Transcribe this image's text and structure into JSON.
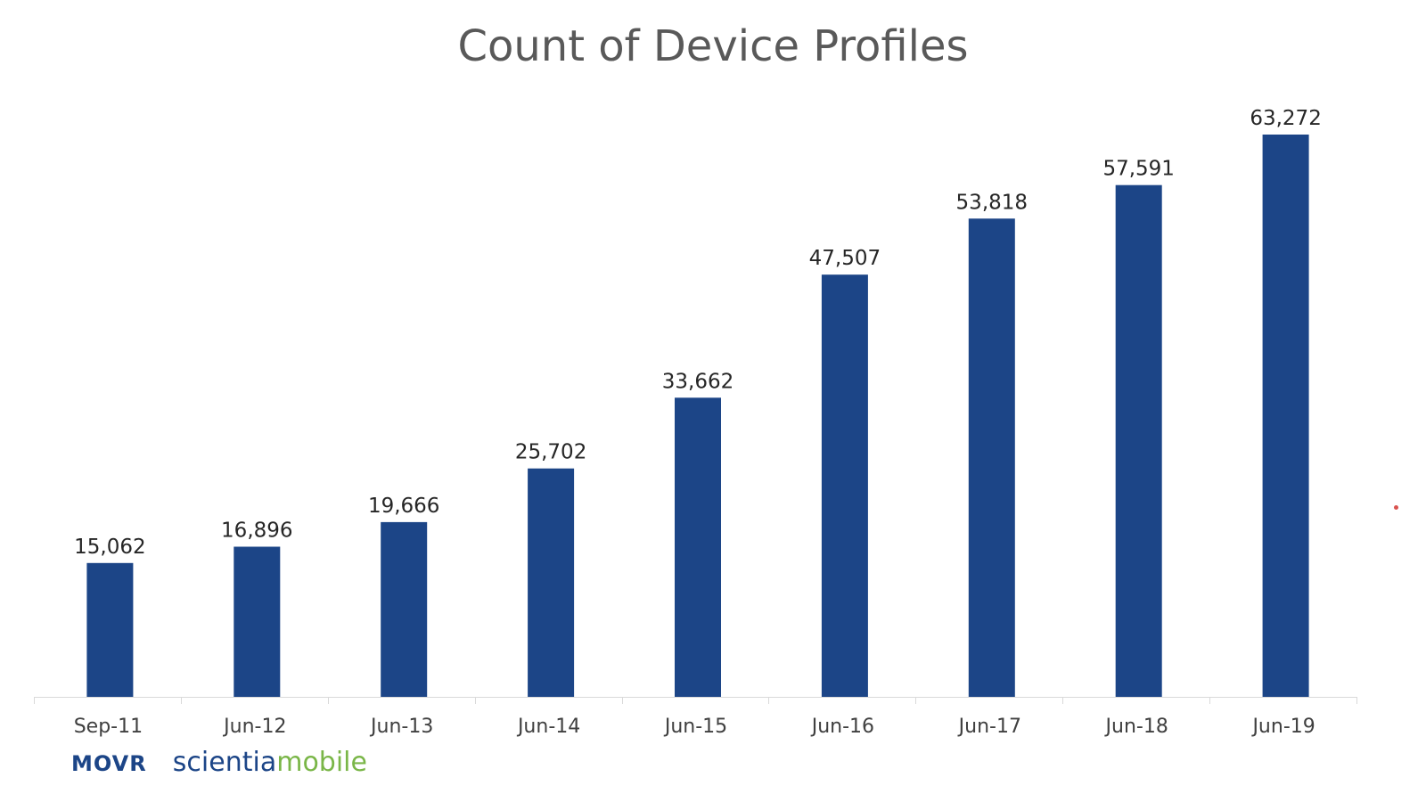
{
  "chart_data": {
    "type": "bar",
    "title": "Count of Device Profiles",
    "xlabel": "",
    "ylabel": "",
    "categories": [
      "Sep-11",
      "Jun-12",
      "Jun-13",
      "Jun-14",
      "Jun-15",
      "Jun-16",
      "Jun-17",
      "Jun-18",
      "Jun-19"
    ],
    "values": [
      15062,
      16896,
      19666,
      25702,
      33662,
      47507,
      53818,
      57591,
      63272
    ],
    "data_labels": [
      "15,062",
      "16,896",
      "19,666",
      "25,702",
      "33,662",
      "47,507",
      "53,818",
      "57,591",
      "63,272"
    ],
    "ylim": [
      0,
      63272
    ],
    "grid": false,
    "legend": "none",
    "bar_color": "#1c4587",
    "axis_color": "#d9d9d9"
  },
  "branding": {
    "movr": "MOVR",
    "scientia": "scientia",
    "mobile": "mobile",
    "primary_color": "#1c4587",
    "accent_color": "#7ab648"
  }
}
